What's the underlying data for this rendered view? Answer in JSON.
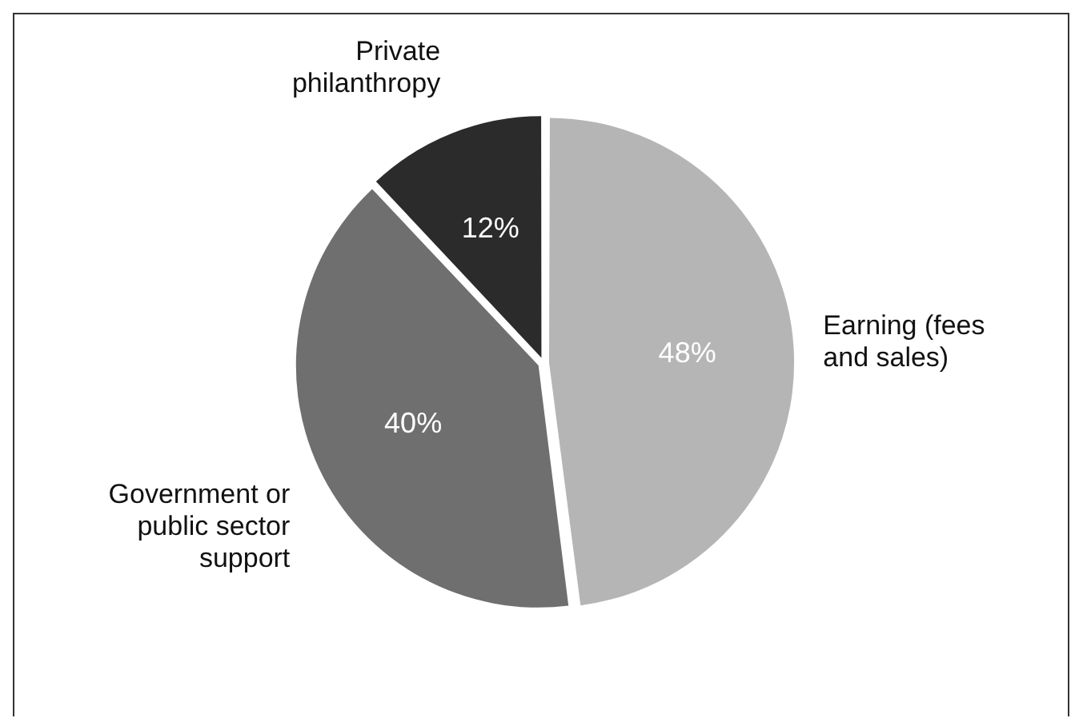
{
  "chart_data": {
    "type": "pie",
    "categories": [
      "Earning (fees and sales)",
      "Government or public sector support",
      "Private philanthropy"
    ],
    "values": [
      48,
      40,
      12
    ],
    "colors": [
      "#b5b5b5",
      "#6f6f6f",
      "#2b2b2b"
    ],
    "value_labels": [
      "48%",
      "40%",
      "12%"
    ],
    "legend": false
  }
}
